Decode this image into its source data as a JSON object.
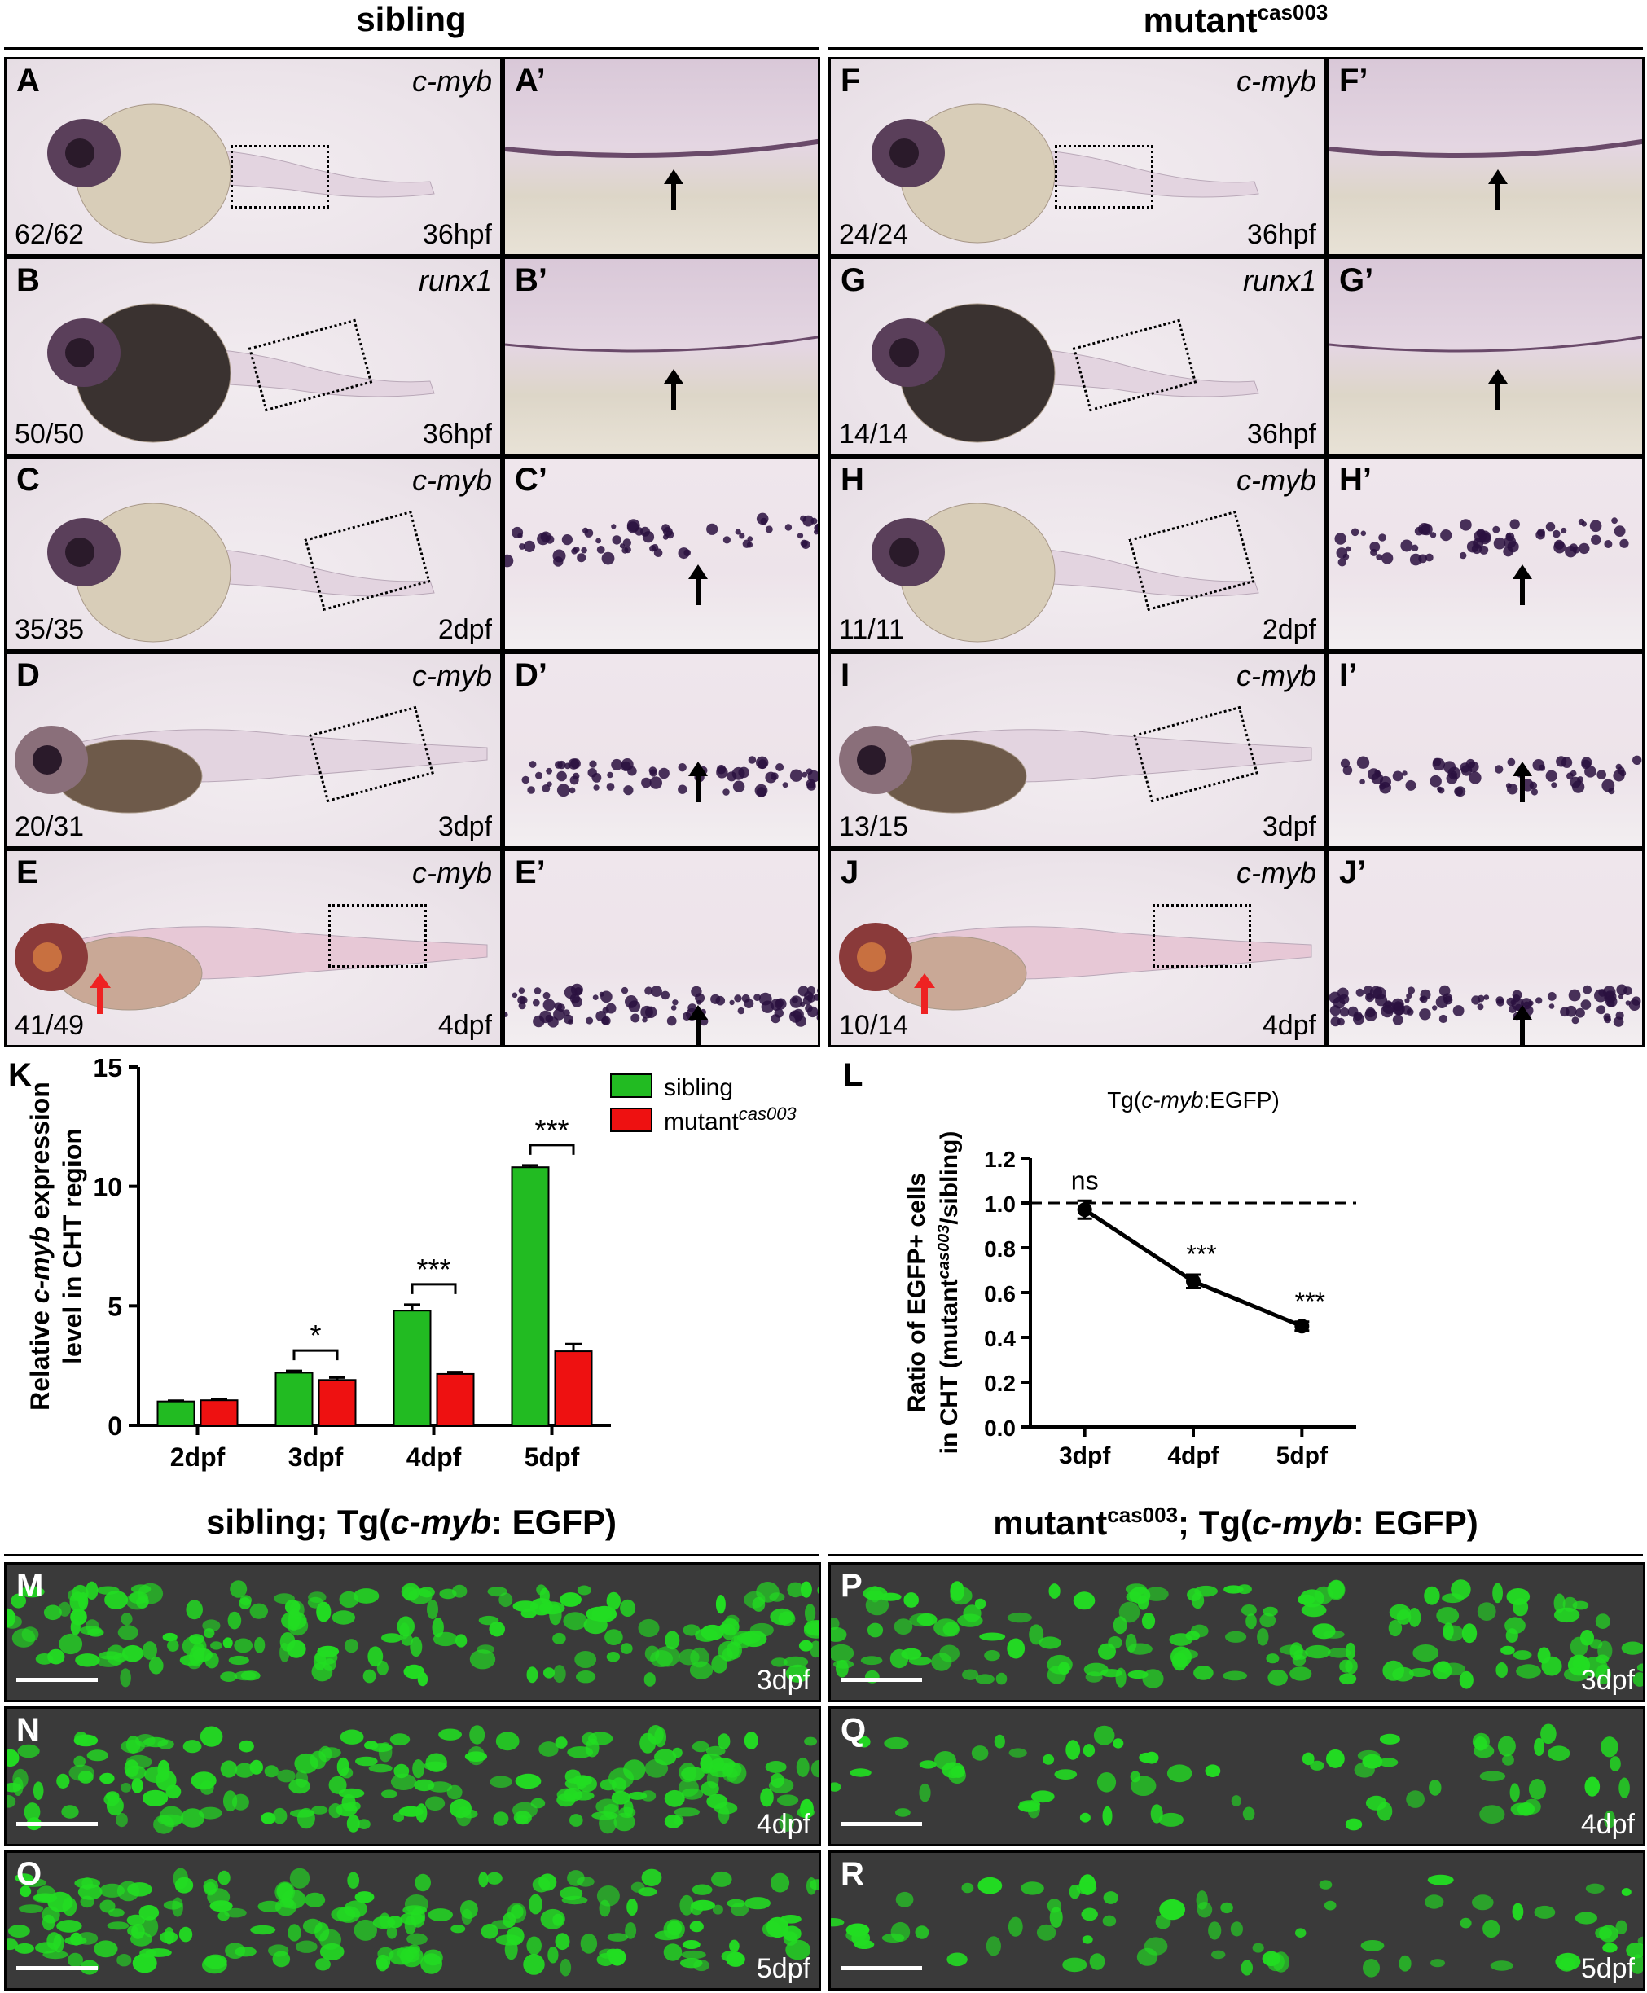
{
  "headers": {
    "sibling": "sibling",
    "mutant": "mutant",
    "mutant_sup": "cas003",
    "bottom_sibling_pre": "sibling; Tg(",
    "bottom_sibling_gene": "c-myb",
    "bottom_sibling_post": ": EGFP)",
    "bottom_mutant_pre": "mutant",
    "bottom_mutant_sup": "cas003",
    "bottom_mutant_mid": "; Tg(",
    "bottom_mutant_gene": "c-myb",
    "bottom_mutant_post": ": EGFP)"
  },
  "ish_panels": [
    {
      "letter": "A",
      "gene": "c-myb",
      "count": "62/62",
      "stage": "36hpf",
      "zoom": "A’"
    },
    {
      "letter": "B",
      "gene": "runx1",
      "count": "50/50",
      "stage": "36hpf",
      "zoom": "B’"
    },
    {
      "letter": "C",
      "gene": "c-myb",
      "count": "35/35",
      "stage": "2dpf",
      "zoom": "C’"
    },
    {
      "letter": "D",
      "gene": "c-myb",
      "count": "20/31",
      "stage": "3dpf",
      "zoom": "D’"
    },
    {
      "letter": "E",
      "gene": "c-myb",
      "count": "41/49",
      "stage": "4dpf",
      "zoom": "E’"
    },
    {
      "letter": "F",
      "gene": "c-myb",
      "count": "24/24",
      "stage": "36hpf",
      "zoom": "F’"
    },
    {
      "letter": "G",
      "gene": "runx1",
      "count": "14/14",
      "stage": "36hpf",
      "zoom": "G’"
    },
    {
      "letter": "H",
      "gene": "c-myb",
      "count": "11/11",
      "stage": "2dpf",
      "zoom": "H’"
    },
    {
      "letter": "I",
      "gene": "c-myb",
      "count": "13/15",
      "stage": "3dpf",
      "zoom": "I’"
    },
    {
      "letter": "J",
      "gene": "c-myb",
      "count": "10/14",
      "stage": "4dpf",
      "zoom": "J’"
    }
  ],
  "fluo_panels": [
    {
      "letter": "M",
      "stage": "3dpf"
    },
    {
      "letter": "N",
      "stage": "4dpf"
    },
    {
      "letter": "O",
      "stage": "5dpf"
    },
    {
      "letter": "P",
      "stage": "3dpf"
    },
    {
      "letter": "Q",
      "stage": "4dpf"
    },
    {
      "letter": "R",
      "stage": "5dpf"
    }
  ],
  "chart_K": {
    "letter": "K",
    "type": "bar",
    "ylabel_line1_pre": "Relative ",
    "ylabel_line1_gene": "c-myb",
    "ylabel_line1_post": " expression",
    "ylabel_line2": "level in CHT region",
    "categories": [
      "2dpf",
      "3dpf",
      "4dpf",
      "5dpf"
    ],
    "yticks": [
      "0",
      "5",
      "10",
      "15"
    ],
    "ylim": [
      0,
      15
    ],
    "series": [
      {
        "name": "sibling",
        "color": "#22bb22",
        "values": [
          1.0,
          2.2,
          4.8,
          10.8
        ],
        "err": [
          0.03,
          0.08,
          0.25,
          0.08
        ]
      },
      {
        "name": "mutant",
        "name_sup": "cas003",
        "color": "#ee1111",
        "values": [
          1.05,
          1.9,
          2.15,
          3.1
        ],
        "err": [
          0.03,
          0.1,
          0.08,
          0.3
        ]
      }
    ],
    "sig": [
      "*",
      "***",
      "***"
    ]
  },
  "chart_L": {
    "letter": "L",
    "type": "line",
    "title_pre": "Tg(",
    "title_gene": "c-myb",
    "title_post": ":EGFP)",
    "ylabel_line1": "Ratio of EGFP+ cells",
    "ylabel_line2_pre": "in CHT (mutant",
    "ylabel_line2_sup": "cas003",
    "ylabel_line2_post": "/sibling)",
    "categories": [
      "3dpf",
      "4dpf",
      "5dpf"
    ],
    "values": [
      0.97,
      0.65,
      0.45
    ],
    "err": [
      0.04,
      0.03,
      0.02
    ],
    "yticks": [
      "0.0",
      "0.2",
      "0.4",
      "0.6",
      "0.8",
      "1.0",
      "1.2"
    ],
    "ylim": [
      0,
      1.2
    ],
    "reference": 1.0,
    "sig": [
      "ns",
      "***",
      "***"
    ]
  }
}
